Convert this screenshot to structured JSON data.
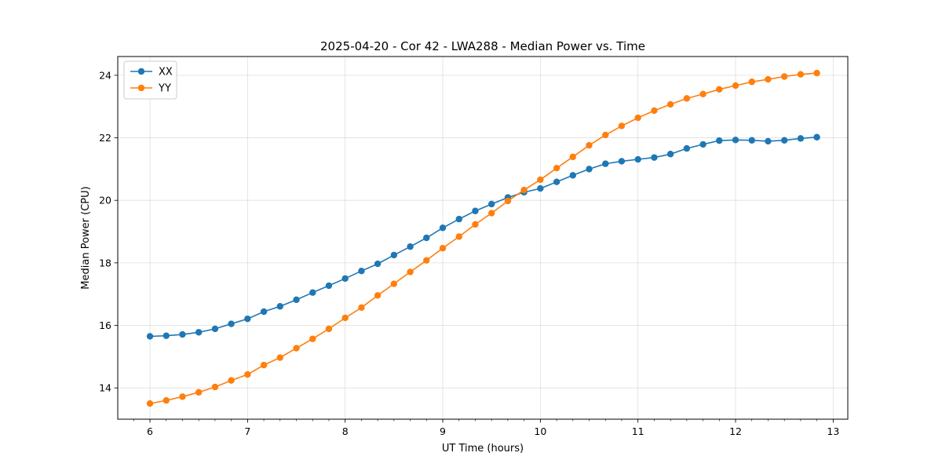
{
  "chart_data": {
    "type": "line",
    "title": "2025-04-20 - Cor 42 - LWA288 - Median Power vs. Time",
    "xlabel": "UT Time (hours)",
    "ylabel": "Median Power (CPU)",
    "xlim": [
      5.67,
      13.15
    ],
    "ylim": [
      13.0,
      24.6
    ],
    "xticks": [
      6,
      7,
      8,
      9,
      10,
      11,
      12,
      13
    ],
    "yticks": [
      14,
      16,
      18,
      20,
      22,
      24
    ],
    "grid": true,
    "legend_position": "upper-left",
    "x": [
      6.0,
      6.167,
      6.333,
      6.5,
      6.667,
      6.833,
      7.0,
      7.167,
      7.333,
      7.5,
      7.667,
      7.833,
      8.0,
      8.167,
      8.333,
      8.5,
      8.667,
      8.833,
      9.0,
      9.167,
      9.333,
      9.5,
      9.667,
      9.833,
      10.0,
      10.167,
      10.333,
      10.5,
      10.667,
      10.833,
      11.0,
      11.167,
      11.333,
      11.5,
      11.667,
      11.833,
      12.0,
      12.167,
      12.333,
      12.5,
      12.667,
      12.833
    ],
    "series": [
      {
        "name": "XX",
        "color": "#1f77b4",
        "values": [
          15.65,
          15.67,
          15.71,
          15.78,
          15.89,
          16.05,
          16.21,
          16.44,
          16.61,
          16.82,
          17.05,
          17.27,
          17.5,
          17.74,
          17.97,
          18.25,
          18.52,
          18.8,
          19.12,
          19.4,
          19.66,
          19.88,
          20.09,
          20.26,
          20.38,
          20.59,
          20.8,
          21.0,
          21.17,
          21.25,
          21.31,
          21.37,
          21.48,
          21.66,
          21.79,
          21.91,
          21.93,
          21.92,
          21.89,
          21.92,
          21.98,
          22.02
        ]
      },
      {
        "name": "YY",
        "color": "#ff7f0e",
        "values": [
          13.5,
          13.6,
          13.72,
          13.86,
          14.03,
          14.24,
          14.43,
          14.73,
          14.97,
          15.27,
          15.57,
          15.89,
          16.24,
          16.57,
          16.96,
          17.33,
          17.71,
          18.08,
          18.47,
          18.84,
          19.23,
          19.59,
          19.98,
          20.33,
          20.66,
          21.03,
          21.39,
          21.76,
          22.09,
          22.38,
          22.64,
          22.87,
          23.07,
          23.26,
          23.4,
          23.55,
          23.67,
          23.79,
          23.87,
          23.96,
          24.03,
          24.07
        ]
      }
    ]
  }
}
